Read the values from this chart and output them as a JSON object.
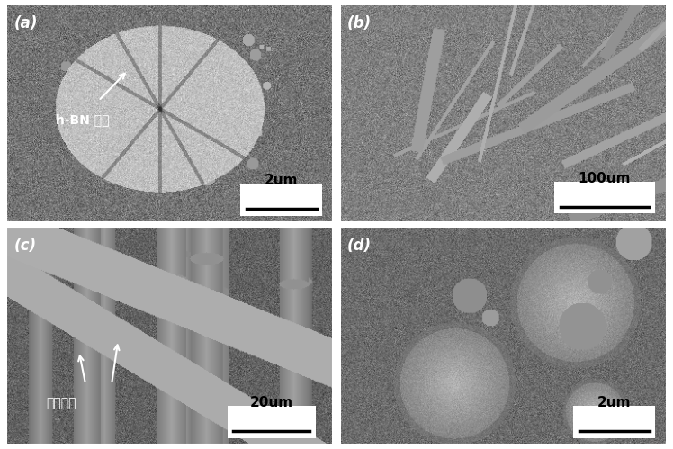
{
  "panels": [
    {
      "label": "(a)",
      "scale_bar_text": "2um",
      "annotation_text": "h-BN 涂层",
      "arrow": true
    },
    {
      "label": "(b)",
      "scale_bar_text": "100um",
      "annotation_text": "",
      "arrow": false
    },
    {
      "label": "(c)",
      "scale_bar_text": "20um",
      "annotation_text": "拔出纤维",
      "arrow": true
    },
    {
      "label": "(d)",
      "scale_bar_text": "2um",
      "annotation_text": "",
      "arrow": false
    }
  ],
  "figure_width": 7.48,
  "figure_height": 4.99,
  "label_fontsize": 12,
  "scalebar_fontsize": 11,
  "annotation_fontsize": 10
}
